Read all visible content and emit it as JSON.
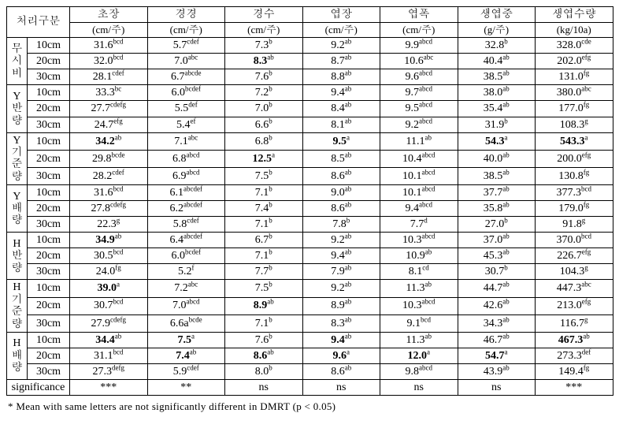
{
  "table": {
    "header_group_label": "처리구분",
    "columns": [
      {
        "top": "초장",
        "unit": "(cm/주)"
      },
      {
        "top": "경경",
        "unit": "(cm/주)"
      },
      {
        "top": "경수",
        "unit": "(cm/주)"
      },
      {
        "top": "엽장",
        "unit": "(cm/주)"
      },
      {
        "top": "엽폭",
        "unit": "(cm/주)"
      },
      {
        "top": "생엽중",
        "unit": "(g/주)"
      },
      {
        "top": "생엽수량",
        "unit": "(kg/10a)"
      }
    ],
    "groups": [
      {
        "label": "무시비",
        "depths": [
          "10cm",
          "20cm",
          "30cm"
        ],
        "rows": [
          [
            {
              "v": "31.6",
              "s": "bcd",
              "b": 0
            },
            {
              "v": "5.7",
              "s": "cdef",
              "b": 0
            },
            {
              "v": "7.3",
              "s": "b",
              "b": 0
            },
            {
              "v": "9.2",
              "s": "ab",
              "b": 0
            },
            {
              "v": "9.9",
              "s": "abcd",
              "b": 0
            },
            {
              "v": "32.8",
              "s": "b",
              "b": 0
            },
            {
              "v": "328.0",
              "s": "cde",
              "b": 0
            }
          ],
          [
            {
              "v": "32.0",
              "s": "bcd",
              "b": 0
            },
            {
              "v": "7.0",
              "s": "abc",
              "b": 0
            },
            {
              "v": "8.3",
              "s": "ab",
              "b": 1
            },
            {
              "v": "8.7",
              "s": "ab",
              "b": 0
            },
            {
              "v": "10.6",
              "s": "abc",
              "b": 0
            },
            {
              "v": "40.4",
              "s": "ab",
              "b": 0
            },
            {
              "v": "202.0",
              "s": "efg",
              "b": 0
            }
          ],
          [
            {
              "v": "28.1",
              "s": "cdef",
              "b": 0
            },
            {
              "v": "6.7",
              "s": "abcde",
              "b": 0
            },
            {
              "v": "7.6",
              "s": "b",
              "b": 0
            },
            {
              "v": "8.8",
              "s": "ab",
              "b": 0
            },
            {
              "v": "9.6",
              "s": "abcd",
              "b": 0
            },
            {
              "v": "38.5",
              "s": "ab",
              "b": 0
            },
            {
              "v": "131.0",
              "s": "fg",
              "b": 0
            }
          ]
        ]
      },
      {
        "label": "Y반량",
        "depths": [
          "10cm",
          "20cm",
          "30cm"
        ],
        "rows": [
          [
            {
              "v": "33.3",
              "s": "bc",
              "b": 0
            },
            {
              "v": "6.0",
              "s": "bcdef",
              "b": 0
            },
            {
              "v": "7.2",
              "s": "b",
              "b": 0
            },
            {
              "v": "9.4",
              "s": "ab",
              "b": 0
            },
            {
              "v": "9.7",
              "s": "abcd",
              "b": 0
            },
            {
              "v": "38.0",
              "s": "ab",
              "b": 0
            },
            {
              "v": "380.0",
              "s": "abc",
              "b": 0
            }
          ],
          [
            {
              "v": "27.7",
              "s": "cdefg",
              "b": 0
            },
            {
              "v": "5.5",
              "s": "def",
              "b": 0
            },
            {
              "v": "7.0",
              "s": "b",
              "b": 0
            },
            {
              "v": "8.4",
              "s": "ab",
              "b": 0
            },
            {
              "v": "9.5",
              "s": "abcd",
              "b": 0
            },
            {
              "v": "35.4",
              "s": "ab",
              "b": 0
            },
            {
              "v": "177.0",
              "s": "fg",
              "b": 0
            }
          ],
          [
            {
              "v": "24.7",
              "s": "efg",
              "b": 0
            },
            {
              "v": "5.4",
              "s": "ef",
              "b": 0
            },
            {
              "v": "6.6",
              "s": "b",
              "b": 0
            },
            {
              "v": "8.1",
              "s": "ab",
              "b": 0
            },
            {
              "v": "9.2",
              "s": "abcd",
              "b": 0
            },
            {
              "v": "31.9",
              "s": "b",
              "b": 0
            },
            {
              "v": "108.3",
              "s": "g",
              "b": 0
            }
          ]
        ]
      },
      {
        "label": "Y기준량",
        "depths": [
          "10cm",
          "20cm",
          "30cm"
        ],
        "rows": [
          [
            {
              "v": "34.2",
              "s": "ab",
              "b": 1
            },
            {
              "v": "7.1",
              "s": "abc",
              "b": 0
            },
            {
              "v": "6.8",
              "s": "b",
              "b": 0
            },
            {
              "v": "9.5",
              "s": "a",
              "b": 1
            },
            {
              "v": "11.1",
              "s": "ab",
              "b": 0
            },
            {
              "v": "54.3",
              "s": "a",
              "b": 1
            },
            {
              "v": "543.3",
              "s": "a",
              "b": 1
            }
          ],
          [
            {
              "v": "29.8",
              "s": "bcde",
              "b": 0
            },
            {
              "v": "6.8",
              "s": "abcd",
              "b": 0
            },
            {
              "v": "12.5",
              "s": "a",
              "b": 1
            },
            {
              "v": "8.5",
              "s": "ab",
              "b": 0
            },
            {
              "v": "10.4",
              "s": "abcd",
              "b": 0
            },
            {
              "v": "40.0",
              "s": "ab",
              "b": 0
            },
            {
              "v": "200.0",
              "s": "efg",
              "b": 0
            }
          ],
          [
            {
              "v": "28.2",
              "s": "cdef",
              "b": 0
            },
            {
              "v": "6.9",
              "s": "abcd",
              "b": 0
            },
            {
              "v": "7.5",
              "s": "b",
              "b": 0
            },
            {
              "v": "8.6",
              "s": "ab",
              "b": 0
            },
            {
              "v": "10.1",
              "s": "abcd",
              "b": 0
            },
            {
              "v": "38.5",
              "s": "ab",
              "b": 0
            },
            {
              "v": "130.8",
              "s": "fg",
              "b": 0
            }
          ]
        ]
      },
      {
        "label": "Y배량",
        "depths": [
          "10cm",
          "20cm",
          "30cm"
        ],
        "rows": [
          [
            {
              "v": "31.6",
              "s": "bcd",
              "b": 0
            },
            {
              "v": "6.1",
              "s": "abcdef",
              "b": 0
            },
            {
              "v": "7.1",
              "s": "b",
              "b": 0
            },
            {
              "v": "9.0",
              "s": "ab",
              "b": 0
            },
            {
              "v": "10.1",
              "s": "abcd",
              "b": 0
            },
            {
              "v": "37.7",
              "s": "ab",
              "b": 0
            },
            {
              "v": "377.3",
              "s": "bcd",
              "b": 0
            }
          ],
          [
            {
              "v": "27.8",
              "s": "cdefg",
              "b": 0
            },
            {
              "v": "6.2",
              "s": "abcdef",
              "b": 0
            },
            {
              "v": "7.4",
              "s": "b",
              "b": 0
            },
            {
              "v": "8.6",
              "s": "ab",
              "b": 0
            },
            {
              "v": "9.4",
              "s": "abcd",
              "b": 0
            },
            {
              "v": "35.8",
              "s": "ab",
              "b": 0
            },
            {
              "v": "179.0",
              "s": "fg",
              "b": 0
            }
          ],
          [
            {
              "v": "22.3",
              "s": "g",
              "b": 0
            },
            {
              "v": "5.8",
              "s": "cdef",
              "b": 0
            },
            {
              "v": "7.1",
              "s": "b",
              "b": 0
            },
            {
              "v": "7.8",
              "s": "b",
              "b": 0
            },
            {
              "v": "7.7",
              "s": "d",
              "b": 0
            },
            {
              "v": "27.0",
              "s": "b",
              "b": 0
            },
            {
              "v": "91.8",
              "s": "g",
              "b": 0
            }
          ]
        ]
      },
      {
        "label": "H반량",
        "depths": [
          "10cm",
          "20cm",
          "30cm"
        ],
        "rows": [
          [
            {
              "v": "34.9",
              "s": "ab",
              "b": 1
            },
            {
              "v": "6.4",
              "s": "abcdef",
              "b": 0
            },
            {
              "v": "6.7",
              "s": "b",
              "b": 0
            },
            {
              "v": "9.2",
              "s": "ab",
              "b": 0
            },
            {
              "v": "10.3",
              "s": "abcd",
              "b": 0
            },
            {
              "v": "37.0",
              "s": "ab",
              "b": 0
            },
            {
              "v": "370.0",
              "s": "bcd",
              "b": 0
            }
          ],
          [
            {
              "v": "30.5",
              "s": "bcd",
              "b": 0
            },
            {
              "v": "6.0",
              "s": "bcdef",
              "b": 0
            },
            {
              "v": "7.1",
              "s": "b",
              "b": 0
            },
            {
              "v": "9.4",
              "s": "ab",
              "b": 0
            },
            {
              "v": "10.9",
              "s": "ab",
              "b": 0
            },
            {
              "v": "45.3",
              "s": "ab",
              "b": 0
            },
            {
              "v": "226.7",
              "s": "efg",
              "b": 0
            }
          ],
          [
            {
              "v": "24.0",
              "s": "fg",
              "b": 0
            },
            {
              "v": "5.2",
              "s": "f",
              "b": 0
            },
            {
              "v": "7.7",
              "s": "b",
              "b": 0
            },
            {
              "v": "7.9",
              "s": "ab",
              "b": 0
            },
            {
              "v": "8.1",
              "s": "cd",
              "b": 0
            },
            {
              "v": "30.7",
              "s": "b",
              "b": 0
            },
            {
              "v": "104.3",
              "s": "g",
              "b": 0
            }
          ]
        ]
      },
      {
        "label": "H기준량",
        "depths": [
          "10cm",
          "20cm",
          "30cm"
        ],
        "rows": [
          [
            {
              "v": "39.0",
              "s": "a",
              "b": 1
            },
            {
              "v": "7.2",
              "s": "abc",
              "b": 0
            },
            {
              "v": "7.5",
              "s": "b",
              "b": 0
            },
            {
              "v": "9.2",
              "s": "ab",
              "b": 0
            },
            {
              "v": "11.3",
              "s": "ab",
              "b": 0
            },
            {
              "v": "44.7",
              "s": "ab",
              "b": 0
            },
            {
              "v": "447.3",
              "s": "abc",
              "b": 0
            }
          ],
          [
            {
              "v": "30.7",
              "s": "bcd",
              "b": 0
            },
            {
              "v": "7.0",
              "s": "abcd",
              "b": 0
            },
            {
              "v": "8.9",
              "s": "ab",
              "b": 1
            },
            {
              "v": "8.9",
              "s": "ab",
              "b": 0
            },
            {
              "v": "10.3",
              "s": "abcd",
              "b": 0
            },
            {
              "v": "42.6",
              "s": "ab",
              "b": 0
            },
            {
              "v": "213.0",
              "s": "efg",
              "b": 0
            }
          ],
          [
            {
              "v": "27.9",
              "s": "cdefg",
              "b": 0
            },
            {
              "v": "6.6a",
              "s": "bcde",
              "b": 0
            },
            {
              "v": "7.1",
              "s": "b",
              "b": 0
            },
            {
              "v": "8.3",
              "s": "ab",
              "b": 0
            },
            {
              "v": "9.1",
              "s": "bcd",
              "b": 0
            },
            {
              "v": "34.3",
              "s": "ab",
              "b": 0
            },
            {
              "v": "116.7",
              "s": "g",
              "b": 0
            }
          ]
        ]
      },
      {
        "label": "H배량",
        "depths": [
          "10cm",
          "20cm",
          "30cm"
        ],
        "rows": [
          [
            {
              "v": "34.4",
              "s": "ab",
              "b": 1
            },
            {
              "v": "7.5",
              "s": "a",
              "b": 1
            },
            {
              "v": "7.6",
              "s": "b",
              "b": 0
            },
            {
              "v": "9.4",
              "s": "ab",
              "b": 1
            },
            {
              "v": "11.3",
              "s": "ab",
              "b": 0
            },
            {
              "v": "46.7",
              "s": "ab",
              "b": 0
            },
            {
              "v": "467.3",
              "s": "ab",
              "b": 1
            }
          ],
          [
            {
              "v": "31.1",
              "s": "bcd",
              "b": 0
            },
            {
              "v": "7.4",
              "s": "ab",
              "b": 1
            },
            {
              "v": "8.6",
              "s": "ab",
              "b": 1
            },
            {
              "v": "9.6",
              "s": "a",
              "b": 1
            },
            {
              "v": "12.0",
              "s": "a",
              "b": 1
            },
            {
              "v": "54.7",
              "s": "a",
              "b": 1
            },
            {
              "v": "273.3",
              "s": "def",
              "b": 0
            }
          ],
          [
            {
              "v": "27.3",
              "s": "defg",
              "b": 0
            },
            {
              "v": "5.9",
              "s": "cdef",
              "b": 0
            },
            {
              "v": "8.0",
              "s": "b",
              "b": 0
            },
            {
              "v": "8.6",
              "s": "ab",
              "b": 0
            },
            {
              "v": "9.8",
              "s": "abcd",
              "b": 0
            },
            {
              "v": "43.9",
              "s": "ab",
              "b": 0
            },
            {
              "v": "149.4",
              "s": "fg",
              "b": 0
            }
          ]
        ]
      }
    ],
    "significance_label": "significance",
    "significance": [
      "***",
      "**",
      "ns",
      "ns",
      "ns",
      "ns",
      "***"
    ]
  },
  "footnote": "* Mean with same letters are not significantly different in DMRT (p < 0.05)"
}
